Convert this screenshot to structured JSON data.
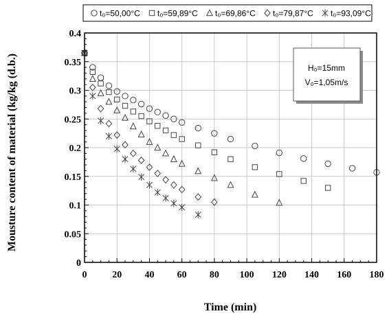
{
  "chart_data": {
    "type": "scatter",
    "xlabel": "Time (min)",
    "ylabel": "Mousture content of material (kg/kg (d.b.)",
    "xlim": [
      0,
      180
    ],
    "ylim": [
      0,
      0.4
    ],
    "x_ticks": [
      "0",
      "20",
      "40",
      "60",
      "80",
      "100",
      "120",
      "140",
      "160",
      "180"
    ],
    "y_ticks": [
      "0",
      "0.05",
      "0.1",
      "0.15",
      "0.2",
      "0.25",
      "0.3",
      "0.35",
      "0.4"
    ],
    "grid": true,
    "legend_position": "top",
    "annotation": {
      "line1": "H₀=15mm",
      "line2": "V₀=1,05m/s"
    },
    "series": [
      {
        "name": "t₀=50,00°C",
        "marker": "circle",
        "x": [
          0,
          5,
          10,
          15,
          20,
          25,
          30,
          35,
          40,
          45,
          50,
          55,
          60,
          70,
          80,
          90,
          105,
          120,
          135,
          150,
          165,
          180
        ],
        "y": [
          0.365,
          0.34,
          0.322,
          0.308,
          0.298,
          0.29,
          0.283,
          0.276,
          0.268,
          0.262,
          0.256,
          0.25,
          0.244,
          0.234,
          0.225,
          0.215,
          0.203,
          0.191,
          0.181,
          0.172,
          0.164,
          0.157
        ]
      },
      {
        "name": "t₀=59,89°C",
        "marker": "square",
        "x": [
          0,
          5,
          10,
          15,
          20,
          25,
          30,
          35,
          40,
          45,
          50,
          55,
          60,
          70,
          80,
          90,
          105,
          120,
          135,
          150
        ],
        "y": [
          0.365,
          0.332,
          0.312,
          0.297,
          0.284,
          0.273,
          0.263,
          0.255,
          0.246,
          0.238,
          0.23,
          0.222,
          0.215,
          0.204,
          0.192,
          0.18,
          0.166,
          0.154,
          0.142,
          0.13
        ]
      },
      {
        "name": "t₀=69,86°C",
        "marker": "triangle",
        "x": [
          0,
          5,
          10,
          15,
          20,
          25,
          30,
          35,
          40,
          45,
          50,
          55,
          60,
          70,
          80,
          90,
          105,
          120
        ],
        "y": [
          0.365,
          0.32,
          0.295,
          0.28,
          0.265,
          0.252,
          0.237,
          0.223,
          0.21,
          0.2,
          0.19,
          0.18,
          0.172,
          0.159,
          0.147,
          0.135,
          0.118,
          0.104
        ]
      },
      {
        "name": "t₀=79,87°C",
        "marker": "diamond",
        "x": [
          0,
          5,
          10,
          15,
          20,
          25,
          30,
          35,
          40,
          45,
          50,
          55,
          60,
          70,
          80
        ],
        "y": [
          0.365,
          0.305,
          0.268,
          0.242,
          0.222,
          0.205,
          0.19,
          0.178,
          0.166,
          0.155,
          0.144,
          0.135,
          0.127,
          0.114,
          0.105
        ]
      },
      {
        "name": "t₀=93,09°C",
        "marker": "asterisk",
        "x": [
          0,
          5,
          10,
          15,
          20,
          25,
          30,
          35,
          40,
          45,
          50,
          55,
          60,
          70
        ],
        "y": [
          0.365,
          0.29,
          0.247,
          0.22,
          0.198,
          0.18,
          0.163,
          0.149,
          0.135,
          0.122,
          0.112,
          0.103,
          0.096,
          0.083
        ]
      }
    ]
  }
}
